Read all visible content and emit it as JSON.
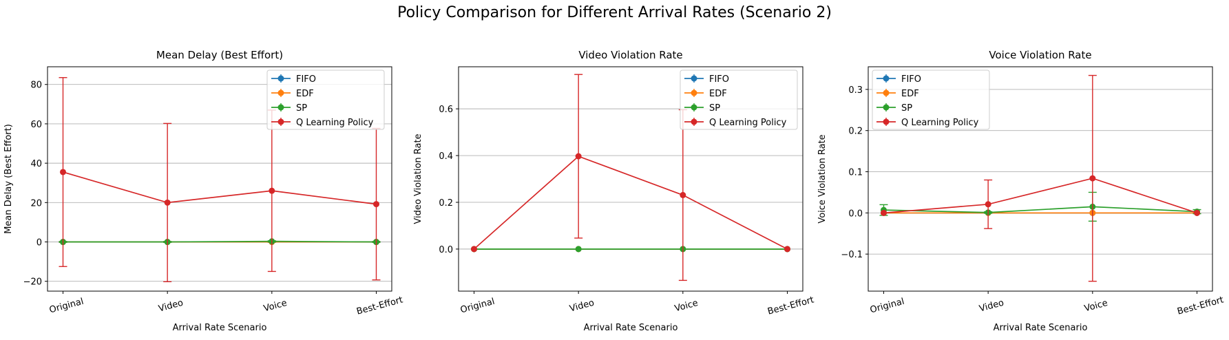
{
  "figure_title": "Policy Comparison for Different Arrival Rates (Scenario 2)",
  "colors": {
    "FIFO": "#1f77b4",
    "EDF": "#ff7f0e",
    "SP": "#2ca02c",
    "Q Learning Policy": "#d62728"
  },
  "chart_data": [
    {
      "type": "line",
      "title": "Mean Delay (Best Effort)",
      "xlabel": "Arrival Rate Scenario",
      "ylabel": "Mean Delay (Best Effort)",
      "categories": [
        "Original",
        "Video",
        "Voice",
        "Best-Effort"
      ],
      "ylim": [
        -25,
        89
      ],
      "yticks": [
        -20,
        0,
        20,
        40,
        60,
        80
      ],
      "ytick_labels": [
        "−20",
        "0",
        "20",
        "40",
        "60",
        "80"
      ],
      "grid": "y",
      "legend_position": "top-right",
      "error_bars": true,
      "series": [
        {
          "name": "FIFO",
          "values": [
            0.0,
            0.0,
            0.0,
            0.0
          ],
          "errors": [
            0.2,
            0.2,
            0.2,
            0.2
          ]
        },
        {
          "name": "EDF",
          "values": [
            0.0,
            0.0,
            0.0,
            0.0
          ],
          "errors": [
            0.2,
            0.2,
            0.2,
            0.2
          ]
        },
        {
          "name": "SP",
          "values": [
            0.0,
            0.0,
            0.3,
            0.0
          ],
          "errors": [
            0.2,
            0.2,
            0.3,
            0.2
          ]
        },
        {
          "name": "Q Learning Policy",
          "values": [
            35.5,
            20.0,
            26.0,
            19.2
          ],
          "errors": [
            48.0,
            40.2,
            41.0,
            38.5
          ]
        }
      ]
    },
    {
      "type": "line",
      "title": "Video Violation Rate",
      "xlabel": "Arrival Rate Scenario",
      "ylabel": "Video Violation Rate",
      "categories": [
        "Original",
        "Video",
        "Voice",
        "Best-Effort"
      ],
      "ylim": [
        -0.18,
        0.78
      ],
      "yticks": [
        0.0,
        0.2,
        0.4,
        0.6
      ],
      "ytick_labels": [
        "0.0",
        "0.2",
        "0.4",
        "0.6"
      ],
      "grid": "y",
      "legend_position": "top-right",
      "error_bars": true,
      "series": [
        {
          "name": "FIFO",
          "values": [
            0.0,
            0.0,
            0.0,
            0.0
          ],
          "errors": [
            0.0,
            0.0,
            0.0,
            0.0
          ]
        },
        {
          "name": "EDF",
          "values": [
            0.0,
            0.0,
            0.0,
            0.0
          ],
          "errors": [
            0.0,
            0.0,
            0.0,
            0.0
          ]
        },
        {
          "name": "SP",
          "values": [
            0.0,
            0.0,
            0.0,
            0.0
          ],
          "errors": [
            0.0,
            0.0,
            0.0,
            0.0
          ]
        },
        {
          "name": "Q Learning Policy",
          "values": [
            0.0,
            0.397,
            0.231,
            0.0
          ],
          "errors": [
            0.0,
            0.35,
            0.365,
            0.0
          ]
        }
      ]
    },
    {
      "type": "line",
      "title": "Voice Violation Rate",
      "xlabel": "Arrival Rate Scenario",
      "ylabel": "Voice Violation Rate",
      "categories": [
        "Original",
        "Video",
        "Voice",
        "Best-Effort"
      ],
      "ylim": [
        -0.19,
        0.355
      ],
      "yticks": [
        -0.1,
        0.0,
        0.1,
        0.2,
        0.3
      ],
      "ytick_labels": [
        "−0.1",
        "0.0",
        "0.1",
        "0.2",
        "0.3"
      ],
      "grid": "y",
      "legend_position": "top-left",
      "error_bars": true,
      "series": [
        {
          "name": "FIFO",
          "values": [
            0.0,
            0.0,
            0.0,
            0.0
          ],
          "errors": [
            0.0,
            0.0,
            0.0,
            0.0
          ]
        },
        {
          "name": "EDF",
          "values": [
            0.0,
            0.0,
            0.0,
            0.0
          ],
          "errors": [
            0.0,
            0.0,
            0.0,
            0.0
          ]
        },
        {
          "name": "SP",
          "values": [
            0.007,
            0.001,
            0.015,
            0.003
          ],
          "errors": [
            0.013,
            0.002,
            0.035,
            0.005
          ]
        },
        {
          "name": "Q Learning Policy",
          "values": [
            0.0,
            0.021,
            0.084,
            0.0
          ],
          "errors": [
            0.0,
            0.059,
            0.25,
            0.0
          ]
        }
      ]
    }
  ]
}
